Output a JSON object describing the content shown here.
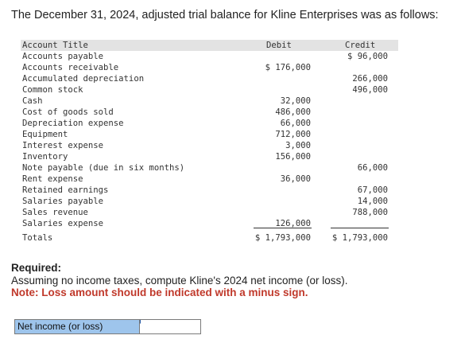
{
  "intro": "The December 31, 2024, adjusted trial balance for Kline Enterprises was as follows:",
  "table": {
    "headers": {
      "title": "Account Title",
      "debit": "Debit",
      "credit": "Credit"
    },
    "rows": [
      {
        "title": "Accounts payable",
        "debit": "",
        "credit": "$ 96,000"
      },
      {
        "title": "Accounts receivable",
        "debit": "$ 176,000",
        "credit": ""
      },
      {
        "title": "Accumulated depreciation",
        "debit": "",
        "credit": "266,000"
      },
      {
        "title": "Common stock",
        "debit": "",
        "credit": "496,000"
      },
      {
        "title": "Cash",
        "debit": "32,000",
        "credit": ""
      },
      {
        "title": "Cost of goods sold",
        "debit": "486,000",
        "credit": ""
      },
      {
        "title": "Depreciation expense",
        "debit": "66,000",
        "credit": ""
      },
      {
        "title": "Equipment",
        "debit": "712,000",
        "credit": ""
      },
      {
        "title": "Interest expense",
        "debit": "3,000",
        "credit": ""
      },
      {
        "title": "Inventory",
        "debit": "156,000",
        "credit": ""
      },
      {
        "title": "Note payable (due in six months)",
        "debit": "",
        "credit": "66,000"
      },
      {
        "title": "Rent expense",
        "debit": "36,000",
        "credit": ""
      },
      {
        "title": "Retained earnings",
        "debit": "",
        "credit": "67,000"
      },
      {
        "title": "Salaries payable",
        "debit": "",
        "credit": "14,000"
      },
      {
        "title": "Sales revenue",
        "debit": "",
        "credit": "788,000"
      },
      {
        "title": "Salaries expense",
        "debit": "126,000",
        "credit": ""
      }
    ],
    "totals": {
      "title": "Totals",
      "debit": "$ 1,793,000",
      "credit": "$ 1,793,000"
    }
  },
  "required": {
    "heading": "Required:",
    "text": "Assuming no income taxes, compute Kline's 2024 net income (or loss).",
    "note": "Note: Loss amount should be indicated with a minus sign."
  },
  "answer": {
    "label": "Net income (or loss)",
    "value": ""
  }
}
